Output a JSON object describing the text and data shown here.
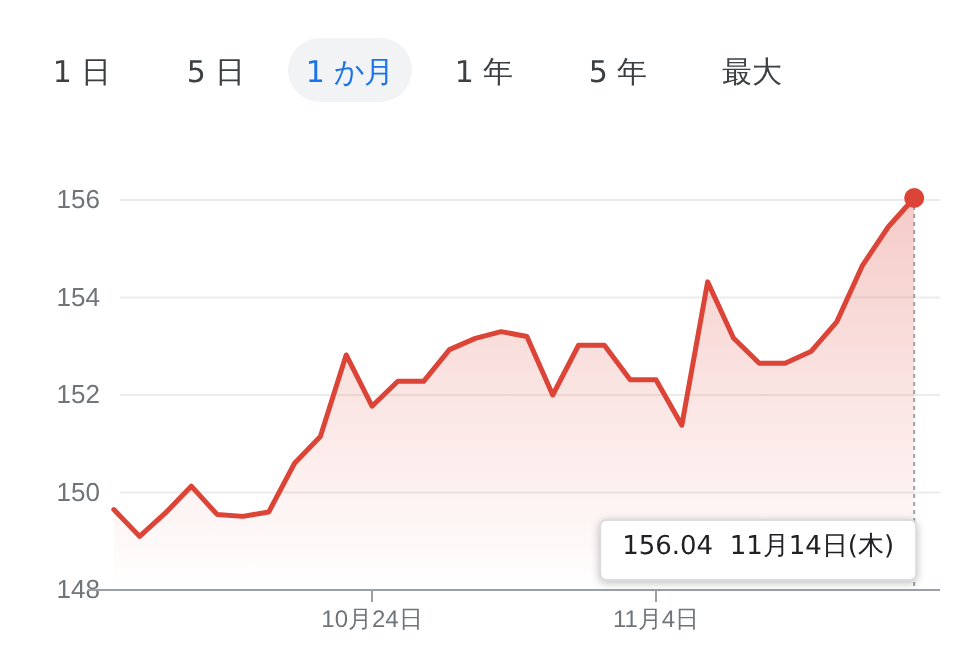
{
  "chart_data": {
    "type": "area",
    "color": "#db4437",
    "x": [
      "--10-14",
      "--10-15",
      "--10-16",
      "--10-17",
      "--10-18",
      "--10-19",
      "--10-20",
      "--10-21",
      "--10-22",
      "--10-23",
      "--10-24",
      "--10-25",
      "--10-26",
      "--10-27",
      "--10-28",
      "--10-29",
      "--10-30",
      "--10-31",
      "--11-01",
      "--11-02",
      "--11-03",
      "--11-04",
      "--11-05",
      "--11-06",
      "--11-07",
      "--11-08",
      "--11-09",
      "--11-10",
      "--11-11",
      "--11-12",
      "--11-13",
      "--11-14"
    ],
    "values": [
      149.65,
      149.1,
      149.58,
      150.13,
      149.55,
      149.51,
      149.6,
      150.6,
      151.15,
      152.82,
      151.77,
      152.28,
      152.28,
      152.93,
      153.16,
      153.3,
      153.2,
      152.0,
      153.02,
      153.02,
      152.31,
      152.31,
      151.38,
      154.32,
      153.17,
      152.65,
      152.65,
      152.89,
      153.5,
      154.66,
      155.45,
      156.04
    ],
    "xlim": [
      "--10-13",
      "--11-15"
    ],
    "xticks": [
      {
        "value": "--10-24",
        "label": "10月24日"
      },
      {
        "value": "--11-04",
        "label": "11月4日"
      }
    ],
    "ylim": [
      148,
      156.04
    ],
    "ref_lines": [
      {
        "axis": "x",
        "value": "--11-14",
        "color": "#9aa0a6",
        "line_style": "dotted"
      }
    ],
    "yticks": [
      148,
      150,
      152,
      154,
      156
    ],
    "grid": "y",
    "annotations": [
      "1 日",
      "5 日",
      "1 か月",
      "1 年",
      "5 年",
      "最大",
      "156.04  11月14日(木)"
    ]
  }
}
